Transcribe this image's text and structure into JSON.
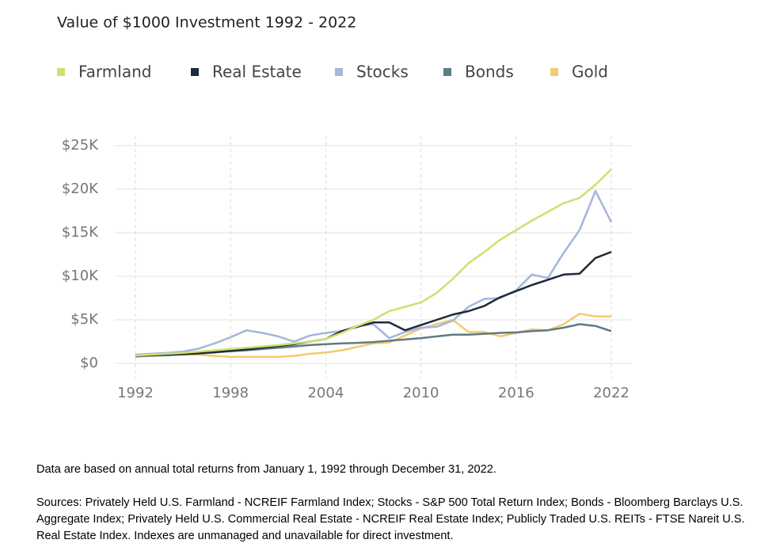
{
  "chart_data": {
    "type": "line",
    "title": "Value of $1000 Investment 1992 - 2022",
    "x": [
      1992,
      1993,
      1994,
      1995,
      1996,
      1997,
      1998,
      1999,
      2000,
      2001,
      2002,
      2003,
      2004,
      2005,
      2006,
      2007,
      2008,
      2009,
      2010,
      2011,
      2012,
      2013,
      2014,
      2015,
      2016,
      2017,
      2018,
      2019,
      2020,
      2021,
      2022
    ],
    "series": [
      {
        "name": "Farmland",
        "color": "#cfe070",
        "values": [
          900,
          1000,
          1100,
          1200,
          1350,
          1500,
          1650,
          1800,
          1950,
          2100,
          2300,
          2500,
          2800,
          3500,
          4300,
          5000,
          6000,
          6500,
          7000,
          8100,
          9700,
          11500,
          12800,
          14200,
          15300,
          16400,
          17400,
          18400,
          19000,
          20500,
          22300
        ]
      },
      {
        "name": "Real Estate",
        "color": "#1e2a38",
        "values": [
          900,
          950,
          1000,
          1050,
          1150,
          1300,
          1450,
          1600,
          1800,
          2000,
          2200,
          2500,
          2800,
          3700,
          4200,
          4700,
          4700,
          3800,
          4400,
          5000,
          5600,
          6000,
          6600,
          7600,
          8300,
          9000,
          9600,
          10200,
          10300,
          12100,
          12800
        ]
      },
      {
        "name": "Stocks",
        "color": "#a3b6dc",
        "values": [
          1000,
          1100,
          1200,
          1350,
          1700,
          2300,
          3000,
          3800,
          3500,
          3100,
          2500,
          3200,
          3500,
          3700,
          4300,
          4500,
          2900,
          3600,
          4100,
          4200,
          4900,
          6500,
          7400,
          7500,
          8400,
          10200,
          9800,
          12700,
          15300,
          19800,
          16200
        ]
      },
      {
        "name": "Bonds",
        "color": "#5e7a85",
        "values": [
          800,
          900,
          950,
          1050,
          1150,
          1250,
          1400,
          1500,
          1650,
          1800,
          1950,
          2100,
          2200,
          2300,
          2350,
          2450,
          2600,
          2750,
          2900,
          3100,
          3300,
          3300,
          3400,
          3500,
          3550,
          3700,
          3800,
          4100,
          4500,
          4300,
          3700
        ]
      },
      {
        "name": "Gold",
        "color": "#f5c96e",
        "values": [
          800,
          850,
          950,
          1000,
          1000,
          850,
          750,
          750,
          750,
          750,
          850,
          1100,
          1250,
          1500,
          1900,
          2300,
          2400,
          3200,
          4000,
          4500,
          5000,
          3600,
          3600,
          3100,
          3500,
          3900,
          3800,
          4500,
          5700,
          5400,
          5400
        ]
      }
    ],
    "xlim": [
      1992,
      2022
    ],
    "xticks": [
      1992,
      1998,
      2004,
      2010,
      2016,
      2022
    ],
    "ylim": [
      0,
      25000
    ],
    "yticks": [
      {
        "value": 0,
        "label": "$0"
      },
      {
        "value": 5000,
        "label": "$5K"
      },
      {
        "value": 10000,
        "label": "$10K"
      },
      {
        "value": 15000,
        "label": "$15K"
      },
      {
        "value": 20000,
        "label": "$20K"
      },
      {
        "value": 25000,
        "label": "$25K"
      }
    ],
    "grid": true
  },
  "footnotes": [
    "Data are based on annual total returns from January 1, 1992 through December 31, 2022.",
    "Sources: Privately Held U.S. Farmland - NCREIF Farmland Index; Stocks - S&P 500 Total Return Index; Bonds - Bloomberg Barclays U.S. Aggregate Index; Privately Held U.S. Commercial Real Estate - NCREIF Real Estate Index; Publicly Traded U.S. REITs - FTSE Nareit U.S. Real Estate Index. Indexes are unmanaged and unavailable for direct investment."
  ]
}
